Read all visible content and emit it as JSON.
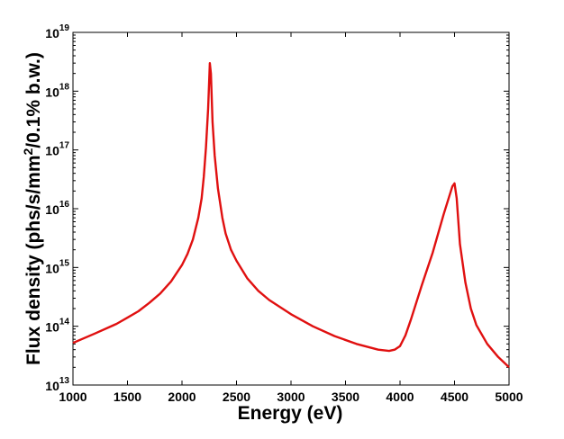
{
  "chart_data": {
    "type": "line",
    "title": "",
    "xlabel": "Energy (eV)",
    "ylabel": "Flux density (phs/s/mm²/0.1% b.w.)",
    "ylabel_parts": [
      "Flux density (phs/s/mm",
      "2",
      "/0.1% b.w.)"
    ],
    "xlim": [
      1000,
      5000
    ],
    "ylim": [
      10000000000000.0,
      1e+19
    ],
    "yscale": "log",
    "grid": false,
    "x_ticks": [
      "1000",
      "1500",
      "2000",
      "2500",
      "3000",
      "3500",
      "4000",
      "4500",
      "5000"
    ],
    "y_ticks": [
      {
        "base": "10",
        "exp": "13"
      },
      {
        "base": "10",
        "exp": "14"
      },
      {
        "base": "10",
        "exp": "15"
      },
      {
        "base": "10",
        "exp": "16"
      },
      {
        "base": "10",
        "exp": "17"
      },
      {
        "base": "10",
        "exp": "18"
      },
      {
        "base": "10",
        "exp": "19"
      }
    ],
    "series": [
      {
        "name": "flux",
        "color": "#e01010",
        "x": [
          1000,
          1200,
          1400,
          1500,
          1600,
          1700,
          1800,
          1900,
          2000,
          2050,
          2100,
          2150,
          2180,
          2200,
          2220,
          2240,
          2255,
          2265,
          2280,
          2300,
          2330,
          2370,
          2400,
          2450,
          2500,
          2600,
          2700,
          2800,
          3000,
          3200,
          3400,
          3600,
          3800,
          3900,
          3950,
          4000,
          4050,
          4100,
          4200,
          4300,
          4400,
          4450,
          4480,
          4500,
          4520,
          4550,
          4600,
          4650,
          4700,
          4800,
          4900,
          5000
        ],
        "y": [
          52000000000000.0,
          75000000000000.0,
          110000000000000.0,
          140000000000000.0,
          180000000000000.0,
          250000000000000.0,
          360000000000000.0,
          580000000000000.0,
          1100000000000000.0,
          1700000000000000.0,
          3000000000000000.0,
          7000000000000000.0,
          1.5e+16,
          3.5e+16,
          1.1e+17,
          5e+17,
          3e+18,
          2e+18,
          3e+17,
          8e+16,
          2.2e+16,
          7000000000000000.0,
          3800000000000000.0,
          2000000000000000.0,
          1300000000000000.0,
          650000000000000.0,
          400000000000000.0,
          280000000000000.0,
          160000000000000.0,
          100000000000000.0,
          68000000000000.0,
          50000000000000.0,
          40000000000000.0,
          38000000000000.0,
          40000000000000.0,
          46000000000000.0,
          70000000000000.0,
          130000000000000.0,
          500000000000000.0,
          1800000000000000.0,
          8000000000000000.0,
          1.6e+16,
          2.4e+16,
          2.7e+16,
          1.5e+16,
          2500000000000000.0,
          550000000000000.0,
          200000000000000.0,
          105000000000000.0,
          50000000000000.0,
          30000000000000.0,
          20000000000000.0
        ]
      }
    ]
  }
}
